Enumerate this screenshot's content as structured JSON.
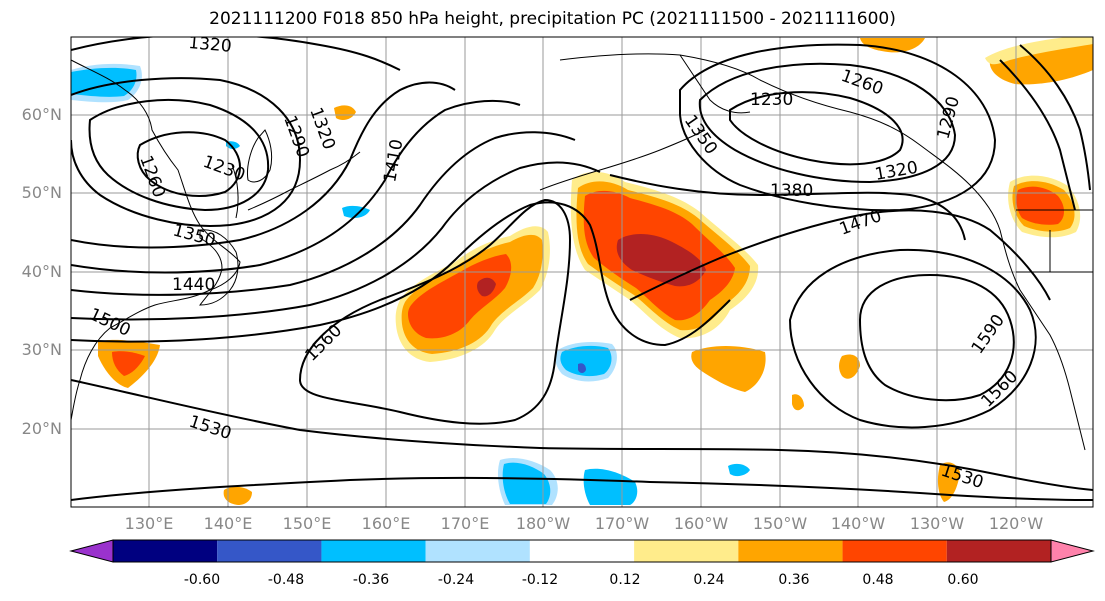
{
  "title": "2021111200 F018 850 hPa height, precipitation PC (2021111500 - 2021111600)",
  "lat_labels": [
    "60°N",
    "50°N",
    "40°N",
    "30°N",
    "20°N"
  ],
  "lon_labels": [
    "130°E",
    "140°E",
    "150°E",
    "160°E",
    "170°E",
    "180°W",
    "170°W",
    "160°W",
    "150°W",
    "140°W",
    "130°W",
    "120°W"
  ],
  "colorbar": {
    "ticks": [
      "-0.60",
      "-0.48",
      "-0.36",
      "-0.24",
      "-0.12",
      "0.12",
      "0.24",
      "0.36",
      "0.48",
      "0.60"
    ],
    "colors": [
      "#9a32cd",
      "#000080",
      "#3557c8",
      "#00bfff",
      "#b0e2ff",
      "#ffffff",
      "#ffec8b",
      "#ffa500",
      "#ff4500",
      "#b22222",
      "#ff82ab"
    ]
  },
  "contour_labels": [
    "1320",
    "1290",
    "1260",
    "1230",
    "1320",
    "1350",
    "1410",
    "1440",
    "1500",
    "1560",
    "1530",
    "1230",
    "1260",
    "1290",
    "1350",
    "1380",
    "1320",
    "1470",
    "1590",
    "1560",
    "1530"
  ],
  "precip_colors": {
    "yellow": "#ffec8b",
    "orange": "#ffa500",
    "red_orange": "#ff4500",
    "dark_red": "#b22222",
    "light_blue": "#b0e2ff",
    "blue": "#00bfff",
    "med_blue": "#3557c8"
  }
}
